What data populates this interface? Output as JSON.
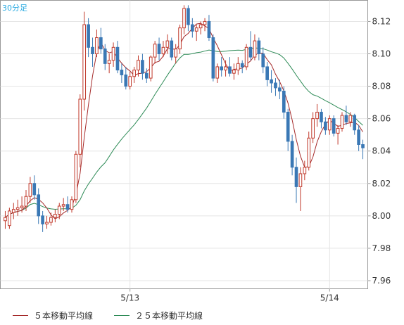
{
  "chart_data": {
    "type": "candlestick",
    "title": "30分足",
    "colors": {
      "up": "#c0392b",
      "down": "#3a78b5",
      "ma5": "#a52a2a",
      "ma25": "#2e8b57",
      "grid": "#e4e4e4",
      "axis": "#999999",
      "text": "#333333",
      "title": "#27a9e1"
    },
    "y_ticks": [
      "8.12",
      "8.10",
      "8.08",
      "8.06",
      "8.04",
      "8.02",
      "8.00",
      "7.98",
      "7.96"
    ],
    "ylim": [
      7.955,
      8.133
    ],
    "x_ticks": [
      {
        "index": 30,
        "label": "5/13"
      },
      {
        "index": 78,
        "label": "5/14"
      }
    ],
    "grid": true,
    "series": [
      {
        "name": "５本移動平均線",
        "style": "line"
      },
      {
        "name": "２５本移動平均線",
        "style": "line"
      }
    ],
    "candles": [
      [
        7.997,
        8.003,
        7.992,
        7.999
      ],
      [
        7.994,
        8.005,
        7.992,
        8.003
      ],
      [
        8.002,
        8.008,
        7.998,
        8.004
      ],
      [
        8.004,
        8.01,
        8.0,
        8.005
      ],
      [
        8.005,
        8.012,
        8.002,
        8.006
      ],
      [
        8.006,
        8.016,
        8.003,
        8.012
      ],
      [
        8.012,
        8.024,
        8.008,
        8.02
      ],
      [
        8.02,
        8.025,
        8.01,
        8.013
      ],
      [
        8.013,
        8.017,
        7.995,
        8.0
      ],
      [
        8.0,
        8.003,
        7.99,
        7.995
      ],
      [
        7.995,
        8.0,
        7.992,
        7.996
      ],
      [
        7.996,
        8.002,
        7.994,
        7.999
      ],
      [
        7.999,
        8.004,
        7.996,
        8.001
      ],
      [
        8.001,
        8.008,
        7.998,
        8.006
      ],
      [
        8.006,
        8.011,
        8.003,
        8.007
      ],
      [
        8.007,
        8.012,
        8.002,
        8.004
      ],
      [
        8.004,
        8.012,
        8.002,
        8.01
      ],
      [
        8.01,
        8.04,
        8.008,
        8.038
      ],
      [
        8.038,
        8.075,
        8.03,
        8.072
      ],
      [
        8.072,
        8.126,
        8.065,
        8.118
      ],
      [
        8.118,
        8.122,
        8.098,
        8.104
      ],
      [
        8.104,
        8.11,
        8.092,
        8.1
      ],
      [
        8.1,
        8.115,
        8.098,
        8.11
      ],
      [
        8.11,
        8.116,
        8.1,
        8.103
      ],
      [
        8.103,
        8.106,
        8.09,
        8.094
      ],
      [
        8.094,
        8.1,
        8.088,
        8.096
      ],
      [
        8.096,
        8.107,
        8.092,
        8.104
      ],
      [
        8.104,
        8.108,
        8.088,
        8.09
      ],
      [
        8.09,
        8.094,
        8.082,
        8.087
      ],
      [
        8.087,
        8.092,
        8.078,
        8.08
      ],
      [
        8.08,
        8.089,
        8.078,
        8.086
      ],
      [
        8.086,
        8.092,
        8.082,
        8.09
      ],
      [
        8.09,
        8.099,
        8.086,
        8.096
      ],
      [
        8.096,
        8.1,
        8.084,
        8.088
      ],
      [
        8.088,
        8.091,
        8.082,
        8.085
      ],
      [
        8.085,
        8.099,
        8.083,
        8.098
      ],
      [
        8.098,
        8.108,
        8.094,
        8.106
      ],
      [
        8.106,
        8.11,
        8.096,
        8.1
      ],
      [
        8.1,
        8.108,
        8.098,
        8.104
      ],
      [
        8.104,
        8.112,
        8.1,
        8.108
      ],
      [
        8.108,
        8.11,
        8.096,
        8.098
      ],
      [
        8.098,
        8.106,
        8.094,
        8.103
      ],
      [
        8.103,
        8.118,
        8.1,
        8.116
      ],
      [
        8.116,
        8.13,
        8.112,
        8.128
      ],
      [
        8.128,
        8.13,
        8.114,
        8.118
      ],
      [
        8.118,
        8.122,
        8.11,
        8.114
      ],
      [
        8.114,
        8.118,
        8.108,
        8.116
      ],
      [
        8.116,
        8.12,
        8.112,
        8.118
      ],
      [
        8.118,
        8.122,
        8.114,
        8.12
      ],
      [
        8.12,
        8.124,
        8.108,
        8.11
      ],
      [
        8.11,
        8.112,
        8.083,
        8.085
      ],
      [
        8.085,
        8.094,
        8.082,
        8.092
      ],
      [
        8.092,
        8.098,
        8.086,
        8.09
      ],
      [
        8.09,
        8.096,
        8.086,
        8.092
      ],
      [
        8.092,
        8.098,
        8.086,
        8.088
      ],
      [
        8.088,
        8.094,
        8.084,
        8.09
      ],
      [
        8.09,
        8.098,
        8.087,
        8.094
      ],
      [
        8.094,
        8.096,
        8.088,
        8.092
      ],
      [
        8.092,
        8.106,
        8.09,
        8.104
      ],
      [
        8.104,
        8.114,
        8.096,
        8.098
      ],
      [
        8.098,
        8.112,
        8.096,
        8.108
      ],
      [
        8.108,
        8.11,
        8.096,
        8.1
      ],
      [
        8.1,
        8.104,
        8.088,
        8.092
      ],
      [
        8.092,
        8.095,
        8.08,
        8.084
      ],
      [
        8.084,
        8.09,
        8.076,
        8.082
      ],
      [
        8.082,
        8.085,
        8.074,
        8.079
      ],
      [
        8.079,
        8.084,
        8.072,
        8.077
      ],
      [
        8.077,
        8.08,
        8.06,
        8.064
      ],
      [
        8.064,
        8.066,
        8.04,
        8.046
      ],
      [
        8.046,
        8.05,
        8.025,
        8.03
      ],
      [
        8.03,
        8.036,
        8.008,
        8.018
      ],
      [
        8.018,
        8.03,
        8.003,
        8.026
      ],
      [
        8.026,
        8.034,
        8.022,
        8.03
      ],
      [
        8.03,
        8.052,
        8.028,
        8.048
      ],
      [
        8.048,
        8.064,
        8.045,
        8.06
      ],
      [
        8.06,
        8.069,
        8.055,
        8.064
      ],
      [
        8.064,
        8.066,
        8.054,
        8.058
      ],
      [
        8.058,
        8.061,
        8.05,
        8.053
      ],
      [
        8.053,
        8.062,
        8.05,
        8.06
      ],
      [
        8.06,
        8.062,
        8.049,
        8.051
      ],
      [
        8.051,
        8.056,
        8.044,
        8.054
      ],
      [
        8.054,
        8.064,
        8.052,
        8.062
      ],
      [
        8.062,
        8.068,
        8.056,
        8.058
      ],
      [
        8.058,
        8.064,
        8.055,
        8.062
      ],
      [
        8.062,
        8.063,
        8.05,
        8.053
      ],
      [
        8.053,
        8.056,
        8.04,
        8.044
      ],
      [
        8.044,
        8.047,
        8.035,
        8.042
      ]
    ]
  }
}
